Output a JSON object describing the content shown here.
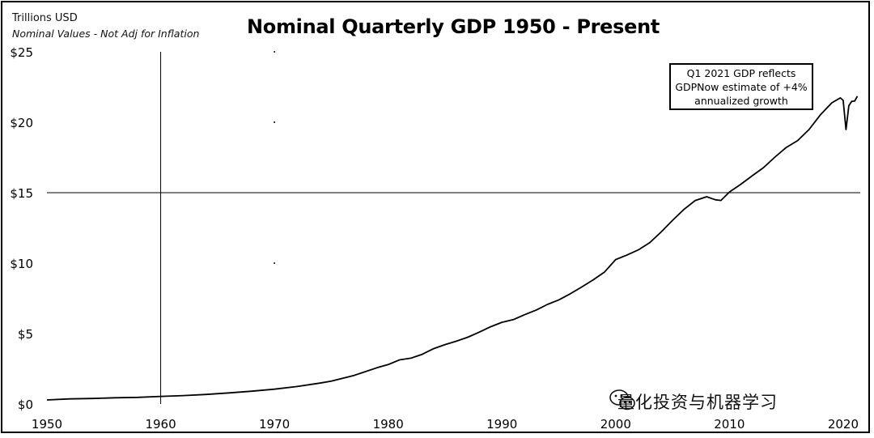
{
  "header": {
    "units_label": "Trillions USD",
    "note": "Nominal Values - Not Adj for Inflation",
    "title": "Nominal Quarterly GDP 1950 - Present"
  },
  "annotation": {
    "line1": "Q1 2021 GDP reflects",
    "line2": "GDPNow estimate of +4%",
    "line3": "annualized growth"
  },
  "watermark": {
    "text": "量化投资与机器学习",
    "icon": "wechat-icon"
  },
  "colors": {
    "line": "#000000",
    "grid": "#000000",
    "background": "#ffffff"
  },
  "chart_data": {
    "type": "line",
    "title": "Nominal Quarterly GDP 1950 - Present",
    "ylabel": "Trillions USD",
    "xlim": [
      1950,
      2021.5
    ],
    "ylim": [
      0,
      25
    ],
    "x_ticks": [
      "1950",
      "1960",
      "1970",
      "1980",
      "1990",
      "2000",
      "2010",
      "2020"
    ],
    "y_ticks": [
      "$0",
      "$5",
      "$10",
      "$15",
      "$20",
      "$25"
    ],
    "grid": "sparse (x=1960, y=15)",
    "series": [
      {
        "x": [
          1950,
          1952,
          1954,
          1956,
          1958,
          1960,
          1962,
          1964,
          1966,
          1968,
          1970,
          1972,
          1974,
          1975,
          1976,
          1977,
          1978,
          1979,
          1980,
          1981,
          1982,
          1983,
          1984,
          1985,
          1986,
          1987,
          1988,
          1989,
          1990,
          1991,
          1992,
          1993,
          1994,
          1995,
          1996,
          1997,
          1998,
          1999,
          2000,
          2001,
          2002,
          2003,
          2004,
          2005,
          2006,
          2007,
          2008,
          2008.75,
          2009.25,
          2010,
          2011,
          2012,
          2013,
          2014,
          2015,
          2016,
          2017,
          2018,
          2019,
          2019.75,
          2020.0,
          2020.25,
          2020.5,
          2020.75,
          2021.0,
          2021.25
        ],
        "values": [
          0.29,
          0.36,
          0.39,
          0.44,
          0.47,
          0.54,
          0.6,
          0.68,
          0.79,
          0.91,
          1.05,
          1.24,
          1.48,
          1.62,
          1.82,
          2.03,
          2.3,
          2.57,
          2.8,
          3.13,
          3.25,
          3.53,
          3.93,
          4.22,
          4.46,
          4.74,
          5.1,
          5.48,
          5.8,
          5.99,
          6.34,
          6.66,
          7.07,
          7.39,
          7.82,
          8.3,
          8.8,
          9.35,
          10.25,
          10.58,
          10.94,
          11.46,
          12.21,
          13.04,
          13.81,
          14.45,
          14.71,
          14.5,
          14.45,
          15.05,
          15.6,
          16.2,
          16.78,
          17.53,
          18.21,
          18.7,
          19.48,
          20.53,
          21.38,
          21.73,
          21.56,
          19.48,
          21.17,
          21.49,
          21.5,
          21.85
        ]
      }
    ]
  }
}
